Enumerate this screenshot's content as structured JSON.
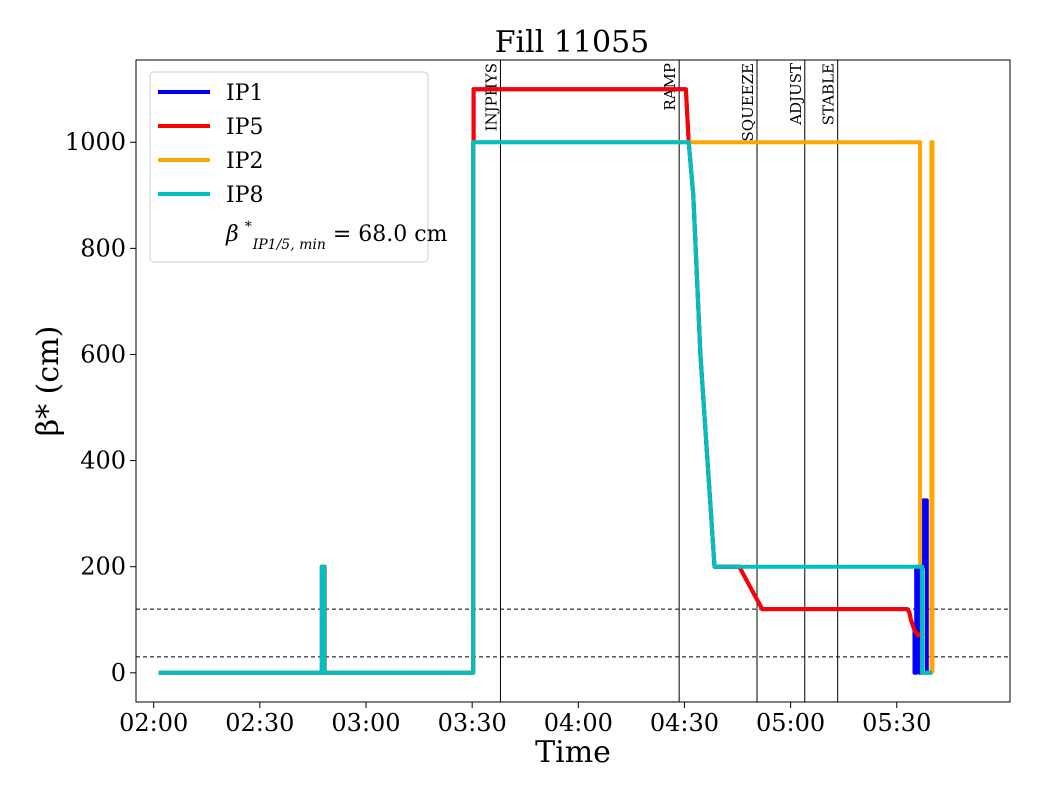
{
  "chart_data": {
    "type": "line",
    "title": "Fill 11055",
    "xlabel": "Time",
    "ylabel": "β* (cm)",
    "xlim_minutes": [
      115,
      362
    ],
    "ylim": [
      -55,
      1155
    ],
    "x_ticks": [
      {
        "minutes": 120,
        "label": "02:00"
      },
      {
        "minutes": 150,
        "label": "02:30"
      },
      {
        "minutes": 180,
        "label": "03:00"
      },
      {
        "minutes": 210,
        "label": "03:30"
      },
      {
        "minutes": 240,
        "label": "04:00"
      },
      {
        "minutes": 270,
        "label": "04:30"
      },
      {
        "minutes": 300,
        "label": "05:00"
      },
      {
        "minutes": 330,
        "label": "05:30"
      }
    ],
    "y_ticks": [
      0,
      200,
      400,
      600,
      800,
      1000
    ],
    "phase_lines": [
      {
        "label": "INJPHYS",
        "minutes": 218
      },
      {
        "label": "RAMP",
        "minutes": 268.5
      },
      {
        "label": "SQUEEZE",
        "minutes": 290.5
      },
      {
        "label": "ADJUST",
        "minutes": 304
      },
      {
        "label": "STABLE",
        "minutes": 313.3
      }
    ],
    "reference_lines": [
      120,
      30
    ],
    "legend_note": "β*_{IP1/5, min} = 68.0 cm",
    "legend_note_parts": {
      "base": "β",
      "sup": "*",
      "sub": "IP1/5, min",
      "rest": " = 68.0 cm"
    },
    "legend_position": "upper-left",
    "series": [
      {
        "name": "IP1",
        "color": "#0000ff",
        "x_minutes": [
          121.4,
          167.5,
          167.5,
          167.6,
          167.6,
          168.2,
          168.2,
          168.3,
          168.3,
          210.3,
          210.3,
          210.4,
          210.4,
          270.4,
          271.2,
          272.5,
          274.5,
          277.5,
          278.5,
          279.5,
          284.5,
          285.5,
          289.5,
          292.0,
          293.3,
          294.0,
          315.5,
          316.0,
          333.0,
          333.5,
          334.0,
          335.0,
          335.0,
          335.5,
          335.5,
          336.5,
          336.5,
          336.7,
          336.7,
          337.5,
          337.5,
          338.5,
          338.5,
          339.2
        ],
        "y_values": [
          0,
          0,
          200,
          200,
          0,
          0,
          200,
          200,
          0,
          0,
          1000,
          1000,
          1100,
          1100,
          1000,
          900,
          600,
          300,
          200,
          200,
          200,
          200,
          150,
          120,
          120,
          120,
          120,
          120,
          120,
          115,
          100,
          80,
          0,
          0,
          200,
          200,
          0,
          0,
          200,
          200,
          325,
          325,
          0,
          0
        ]
      },
      {
        "name": "IP5",
        "color": "#ff0000",
        "x_minutes": [
          121.4,
          167.6,
          167.6,
          168.3,
          168.3,
          210.3,
          210.3,
          210.4,
          210.4,
          270.4,
          271.2,
          272.5,
          274.5,
          277.5,
          278.5,
          279.5,
          284.5,
          285.5,
          289.5,
          292.0,
          293.3,
          294.0,
          315.5,
          316.0,
          333.0,
          333.5,
          334.0,
          335.0,
          336.0,
          337.0,
          337.5
        ],
        "y_values": [
          0,
          0,
          200,
          200,
          0,
          0,
          1000,
          1000,
          1100,
          1100,
          1000,
          900,
          600,
          300,
          200,
          200,
          200,
          200,
          150,
          120,
          120,
          120,
          120,
          120,
          120,
          115,
          100,
          80,
          70,
          75,
          70
        ]
      },
      {
        "name": "IP2",
        "color": "#ffa500",
        "x_minutes": [
          121.4,
          167.5,
          167.5,
          168.2,
          168.2,
          210.3,
          210.3,
          270.4,
          271.2,
          272.5,
          274.5,
          277.5,
          278.5,
          279.5,
          336.6,
          336.6,
          337.2,
          337.2,
          339.8,
          339.8,
          340.1,
          340.1
        ],
        "y_values": [
          0,
          0,
          200,
          200,
          0,
          0,
          1000,
          1000,
          1000,
          1000,
          1000,
          1000,
          1000,
          1000,
          1000,
          200,
          200,
          0,
          0,
          1000,
          1000,
          0
        ]
      },
      {
        "name": "IP8",
        "color": "#00bfbf",
        "x_minutes": [
          121.4,
          167.5,
          167.5,
          168.2,
          168.2,
          210.3,
          210.3,
          270.4,
          271.2,
          272.5,
          274.5,
          277.5,
          278.5,
          279.5,
          336.6,
          336.6,
          337.2,
          337.2,
          340.0
        ],
        "y_values": [
          0,
          0,
          200,
          200,
          0,
          0,
          1000,
          1000,
          1000,
          900,
          600,
          300,
          200,
          200,
          200,
          200,
          200,
          0,
          0
        ]
      }
    ]
  }
}
